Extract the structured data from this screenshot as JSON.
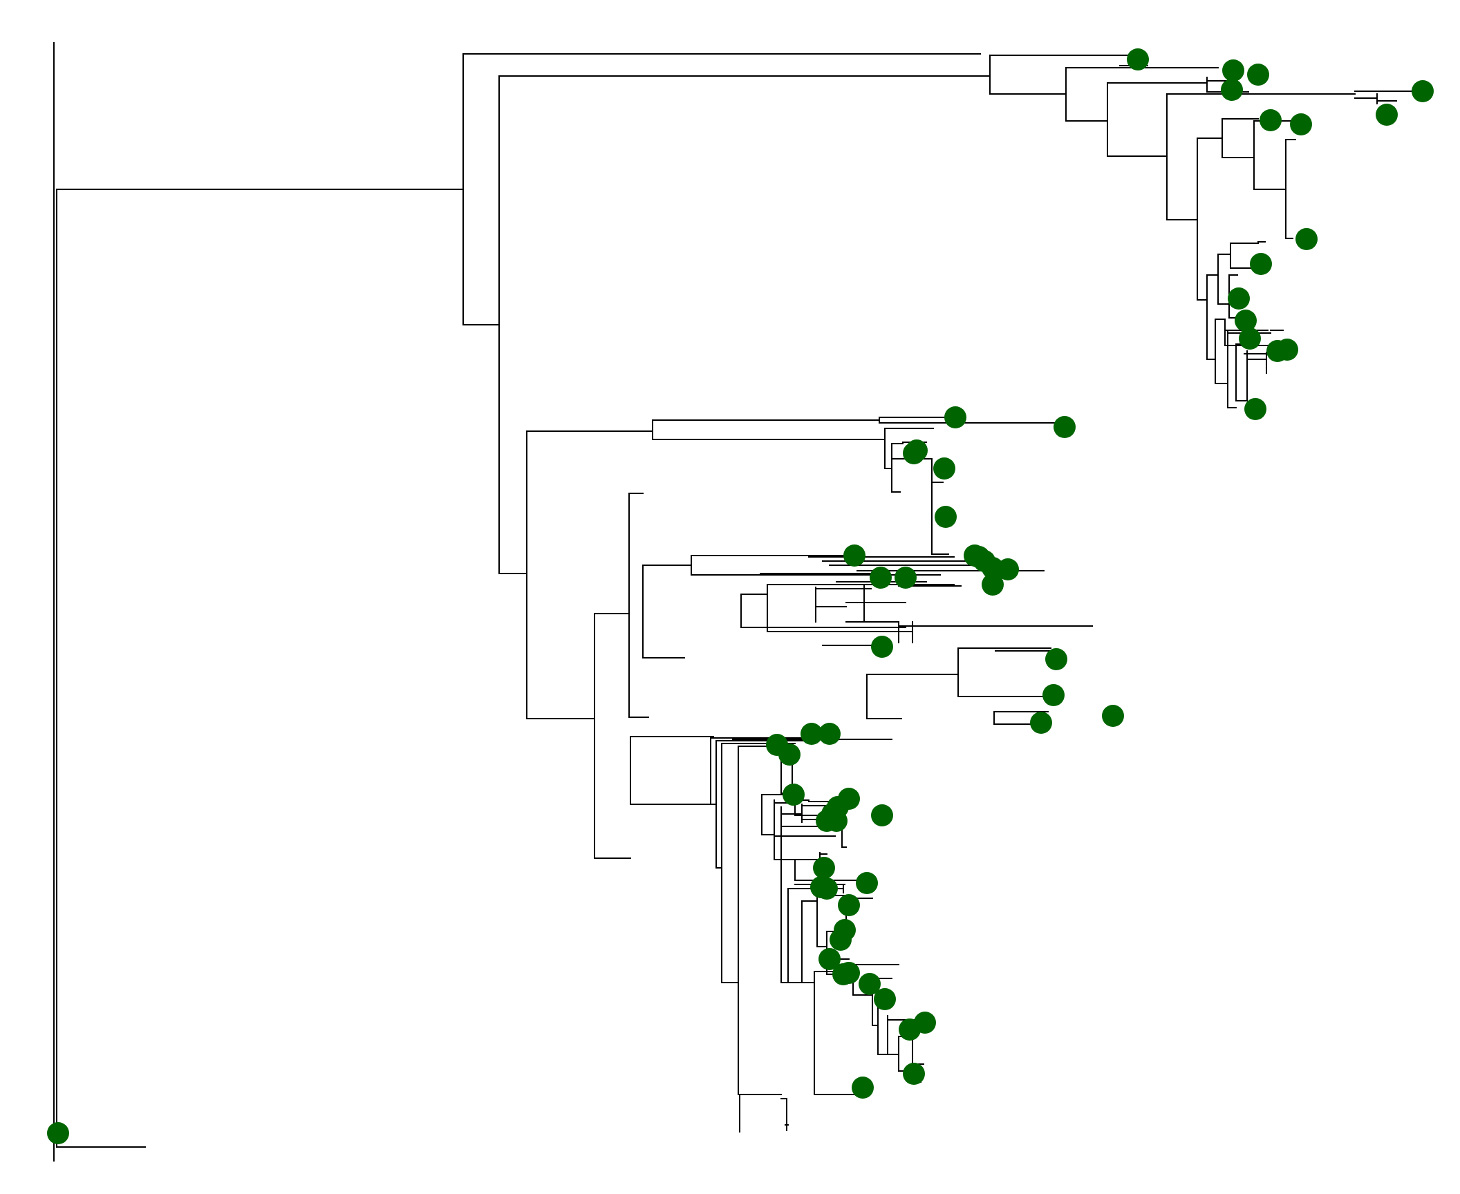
{
  "diagram": {
    "type": "phylogenetic-tree",
    "colors": {
      "branch": "#000000",
      "node_marker": "#006400",
      "background": "#ffffff"
    },
    "labels": []
  }
}
